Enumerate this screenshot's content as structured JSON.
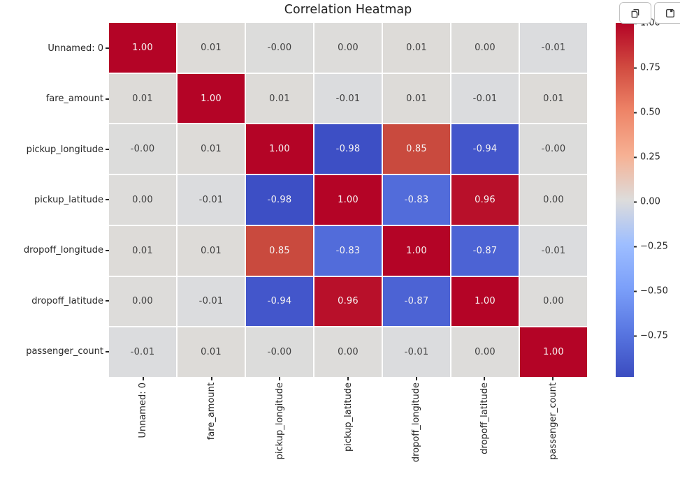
{
  "chart": {
    "title": "Correlation Heatmap"
  },
  "toolbar": {
    "buttons": [
      {
        "name": "copy-output",
        "icon": "copy-icon"
      },
      {
        "name": "save-output",
        "icon": "save-icon"
      }
    ]
  },
  "chart_data": {
    "type": "heatmap",
    "title": "Correlation Heatmap",
    "categories": [
      "Unnamed: 0",
      "fare_amount",
      "pickup_longitude",
      "pickup_latitude",
      "dropoff_longitude",
      "dropoff_latitude",
      "passenger_count"
    ],
    "matrix": [
      [
        "1.00",
        "0.01",
        "-0.00",
        "0.00",
        "0.01",
        "0.00",
        "-0.01"
      ],
      [
        "0.01",
        "1.00",
        "0.01",
        "-0.01",
        "0.01",
        "-0.01",
        "0.01"
      ],
      [
        "-0.00",
        "0.01",
        "1.00",
        "-0.98",
        "0.85",
        "-0.94",
        "-0.00"
      ],
      [
        "0.00",
        "-0.01",
        "-0.98",
        "1.00",
        "-0.83",
        "0.96",
        "0.00"
      ],
      [
        "0.01",
        "0.01",
        "0.85",
        "-0.83",
        "1.00",
        "-0.87",
        "-0.01"
      ],
      [
        "0.00",
        "-0.01",
        "-0.94",
        "0.96",
        "-0.87",
        "1.00",
        "0.00"
      ],
      [
        "-0.01",
        "0.01",
        "-0.00",
        "0.00",
        "-0.01",
        "0.00",
        "1.00"
      ]
    ],
    "colormap": "coolwarm",
    "vmin": -0.98,
    "vmax": 1.0,
    "legend_position": "right",
    "grid": false,
    "colorbar_ticks": [
      {
        "label": "1.00",
        "value": 1.0
      },
      {
        "label": "0.75",
        "value": 0.75
      },
      {
        "label": "0.50",
        "value": 0.5
      },
      {
        "label": "0.25",
        "value": 0.25
      },
      {
        "label": "0.00",
        "value": 0.0
      },
      {
        "label": "−0.25",
        "value": -0.25
      },
      {
        "label": "−0.50",
        "value": -0.5
      },
      {
        "label": "−0.75",
        "value": -0.75
      }
    ],
    "cell_colors": {
      "1.00": "#b40426",
      "0.96": "#b8102a",
      "0.85": "#c94a3e",
      "0.01": "#dddbd8",
      "0.00": "#dddcda",
      "-0.00": "#dcdcdb",
      "-0.01": "#dbdcde",
      "-0.83": "#526cda",
      "-0.87": "#4c63d4",
      "-0.94": "#4356cb",
      "-0.98": "#3d4fc5"
    },
    "annot_light": "#f7f4f3",
    "annot_dark": "#404040",
    "gradient_stops": [
      {
        "pos": 0,
        "color": "#b40426"
      },
      {
        "pos": 12.5,
        "color": "#d14b40"
      },
      {
        "pos": 25,
        "color": "#ee8568"
      },
      {
        "pos": 37.5,
        "color": "#f6b194"
      },
      {
        "pos": 50,
        "color": "#dddcdb"
      },
      {
        "pos": 62.5,
        "color": "#9ebeff"
      },
      {
        "pos": 75,
        "color": "#7b9ff9"
      },
      {
        "pos": 87.5,
        "color": "#5876e1"
      },
      {
        "pos": 100,
        "color": "#3b4cc0"
      }
    ]
  }
}
